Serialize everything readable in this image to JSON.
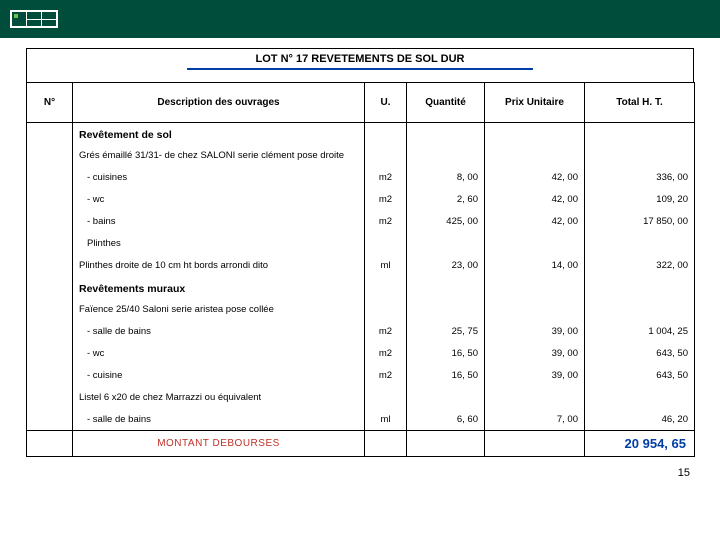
{
  "title": "LOT N° 17 REVETEMENTS DE SOL DUR",
  "headers": {
    "num": "N°",
    "desc": "Description des ouvrages",
    "unit": "U.",
    "qty": "Quantité",
    "pu": "Prix Unitaire",
    "total": "Total H. T."
  },
  "sections": [
    {
      "type": "section",
      "desc": "Revêtement de sol"
    },
    {
      "type": "sub",
      "desc": "Grés émaillé 31/31- de chez SALONI serie clément pose droite"
    },
    {
      "type": "data",
      "indent": true,
      "desc": "- cuisines",
      "unit": "m2",
      "qty": "8, 00",
      "pu": "42, 00",
      "total": "336, 00"
    },
    {
      "type": "data",
      "indent": true,
      "desc": "- wc",
      "unit": "m2",
      "qty": "2, 60",
      "pu": "42, 00",
      "total": "109, 20"
    },
    {
      "type": "data",
      "indent": true,
      "desc": "- bains",
      "unit": "m2",
      "qty": "425, 00",
      "pu": "42, 00",
      "total": "17 850, 00"
    },
    {
      "type": "sub",
      "indent": true,
      "desc": "Plinthes"
    },
    {
      "type": "data",
      "desc": "Plinthes droite de 10 cm ht bords arrondi dito",
      "unit": "ml",
      "qty": "23, 00",
      "pu": "14, 00",
      "total": "322, 00"
    },
    {
      "type": "section",
      "desc": "Revêtements muraux"
    },
    {
      "type": "sub",
      "desc": "Faïence 25/40 Saloni serie aristea pose collée"
    },
    {
      "type": "data",
      "indent": true,
      "desc": "- salle de bains",
      "unit": "m2",
      "qty": "25, 75",
      "pu": "39, 00",
      "total": "1 004, 25"
    },
    {
      "type": "data",
      "indent": true,
      "desc": "- wc",
      "unit": "m2",
      "qty": "16, 50",
      "pu": "39, 00",
      "total": "643, 50"
    },
    {
      "type": "data",
      "indent": true,
      "desc": "- cuisine",
      "unit": "m2",
      "qty": "16, 50",
      "pu": "39, 00",
      "total": "643, 50"
    },
    {
      "type": "sub",
      "desc": "Listel 6 x20 de chez Marrazzi ou équivalent"
    },
    {
      "type": "data",
      "indent": true,
      "desc": "- salle de bains",
      "unit": "ml",
      "qty": "6, 60",
      "pu": "7, 00",
      "total": "46, 20"
    }
  ],
  "footer": {
    "label": "MONTANT DEBOURSES",
    "total": "20 954, 65"
  },
  "page_number": "15",
  "colors": {
    "header_green": "#004d3c",
    "title_underline": "#003da5",
    "footer_label": "#c03028",
    "footer_total": "#003da5"
  }
}
